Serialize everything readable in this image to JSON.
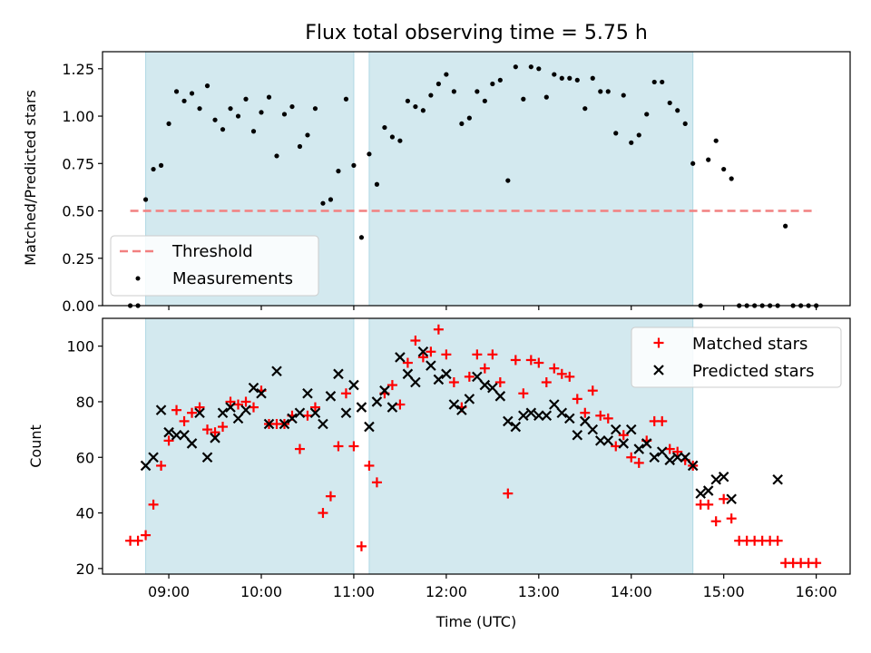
{
  "colors": {
    "shade": "#d3e9ef",
    "shade_edge": "#b0d8e4",
    "threshold": "#f28080",
    "measurements": "#000000",
    "matched": "#ff0000",
    "predicted": "#000000"
  },
  "chart_data": [
    {
      "type": "scatter",
      "title": "Flux total observing time = 5.75 h",
      "xlabel": "",
      "ylabel": "Matched/Predicted stars",
      "xlim": [
        "08:17",
        "16:22"
      ],
      "ylim": [
        0,
        1.34
      ],
      "yticks": [
        "0.00",
        "0.25",
        "0.50",
        "0.75",
        "1.00",
        "1.25"
      ],
      "xticks": [
        "09:00",
        "10:00",
        "11:00",
        "12:00",
        "13:00",
        "14:00",
        "15:00",
        "16:00"
      ],
      "shaded_intervals": [
        [
          "08:45",
          "11:00"
        ],
        [
          "11:10",
          "14:40"
        ]
      ],
      "legend": [
        "Threshold",
        "Measurements"
      ],
      "legend_position": "lower-left",
      "threshold": {
        "name": "Threshold",
        "x": [
          "08:35",
          "16:00"
        ],
        "y": 0.5
      },
      "series": [
        {
          "name": "Measurements",
          "x": [
            "08:35",
            "08:40",
            "08:45",
            "08:50",
            "08:55",
            "09:00",
            "09:05",
            "09:10",
            "09:15",
            "09:20",
            "09:25",
            "09:30",
            "09:35",
            "09:40",
            "09:45",
            "09:50",
            "09:55",
            "10:00",
            "10:05",
            "10:10",
            "10:15",
            "10:20",
            "10:25",
            "10:30",
            "10:35",
            "10:40",
            "10:45",
            "10:50",
            "10:55",
            "11:00",
            "11:05",
            "11:10",
            "11:15",
            "11:20",
            "11:25",
            "11:30",
            "11:35",
            "11:40",
            "11:45",
            "11:50",
            "11:55",
            "12:00",
            "12:05",
            "12:10",
            "12:15",
            "12:20",
            "12:25",
            "12:30",
            "12:35",
            "12:40",
            "12:45",
            "12:50",
            "12:55",
            "13:00",
            "13:05",
            "13:10",
            "13:15",
            "13:20",
            "13:25",
            "13:30",
            "13:35",
            "13:40",
            "13:45",
            "13:50",
            "13:55",
            "14:00",
            "14:05",
            "14:10",
            "14:15",
            "14:20",
            "14:25",
            "14:30",
            "14:35",
            "14:40",
            "14:45",
            "14:50",
            "14:55",
            "15:00",
            "15:05",
            "15:10",
            "15:15",
            "15:20",
            "15:25",
            "15:30",
            "15:35",
            "15:40",
            "15:45",
            "15:50",
            "15:55",
            "16:00"
          ],
          "y": [
            0.0,
            0.0,
            0.56,
            0.72,
            0.74,
            0.96,
            1.13,
            1.08,
            1.12,
            1.04,
            1.16,
            0.98,
            0.93,
            1.04,
            1.0,
            1.09,
            0.92,
            1.02,
            1.1,
            0.79,
            1.01,
            1.05,
            0.84,
            0.9,
            1.04,
            0.54,
            0.56,
            0.71,
            1.09,
            0.74,
            0.36,
            0.8,
            0.64,
            0.94,
            0.89,
            0.87,
            1.08,
            1.05,
            1.03,
            1.11,
            1.17,
            1.22,
            1.13,
            0.96,
            0.99,
            1.13,
            1.08,
            1.17,
            1.19,
            0.66,
            1.26,
            1.09,
            1.26,
            1.25,
            1.1,
            1.22,
            1.2,
            1.2,
            1.19,
            1.04,
            1.2,
            1.13,
            1.13,
            0.91,
            1.11,
            0.86,
            0.9,
            1.01,
            1.18,
            1.18,
            1.07,
            1.03,
            0.96,
            0.75,
            0.0,
            0.77,
            0.87,
            0.72,
            0.67,
            0.0,
            0.0,
            0.0,
            0.0,
            0.0,
            0.0,
            0.42,
            0.0,
            0.0,
            0.0,
            0.0
          ]
        }
      ]
    },
    {
      "type": "scatter",
      "title": "",
      "xlabel": "Time (UTC)",
      "ylabel": "Count",
      "xlim": [
        "08:17",
        "16:22"
      ],
      "ylim": [
        18,
        110
      ],
      "yticks": [
        "20",
        "40",
        "60",
        "80",
        "100"
      ],
      "xticks": [
        "09:00",
        "10:00",
        "11:00",
        "12:00",
        "13:00",
        "14:00",
        "15:00",
        "16:00"
      ],
      "shaded_intervals": [
        [
          "08:45",
          "11:00"
        ],
        [
          "11:10",
          "14:40"
        ]
      ],
      "legend": [
        "Matched stars",
        "Predicted stars"
      ],
      "legend_position": "upper-right",
      "series": [
        {
          "name": "Matched stars",
          "marker": "plus",
          "x": [
            "08:35",
            "08:40",
            "08:45",
            "08:50",
            "08:55",
            "09:00",
            "09:05",
            "09:10",
            "09:15",
            "09:20",
            "09:25",
            "09:30",
            "09:35",
            "09:40",
            "09:45",
            "09:50",
            "09:55",
            "10:00",
            "10:05",
            "10:10",
            "10:15",
            "10:20",
            "10:25",
            "10:30",
            "10:35",
            "10:40",
            "10:45",
            "10:50",
            "10:55",
            "11:00",
            "11:05",
            "11:10",
            "11:15",
            "11:20",
            "11:25",
            "11:30",
            "11:35",
            "11:40",
            "11:45",
            "11:50",
            "11:55",
            "12:00",
            "12:05",
            "12:10",
            "12:15",
            "12:20",
            "12:25",
            "12:30",
            "12:35",
            "12:40",
            "12:45",
            "12:50",
            "12:55",
            "13:00",
            "13:05",
            "13:10",
            "13:15",
            "13:20",
            "13:25",
            "13:30",
            "13:35",
            "13:40",
            "13:45",
            "13:50",
            "13:55",
            "14:00",
            "14:05",
            "14:10",
            "14:15",
            "14:20",
            "14:25",
            "14:30",
            "14:35",
            "14:40",
            "14:45",
            "14:50",
            "14:55",
            "15:00",
            "15:05",
            "15:10",
            "15:15",
            "15:20",
            "15:25",
            "15:30",
            "15:35",
            "15:40",
            "15:45",
            "15:50",
            "15:55",
            "16:00"
          ],
          "y": [
            30,
            30,
            32,
            43,
            57,
            66,
            77,
            73,
            76,
            78,
            70,
            69,
            71,
            80,
            79,
            80,
            78,
            84,
            72,
            72,
            72,
            75,
            63,
            75,
            78,
            40,
            46,
            64,
            83,
            64,
            28,
            57,
            51,
            83,
            86,
            79,
            94,
            102,
            96,
            98,
            106,
            97,
            87,
            78,
            89,
            97,
            92,
            97,
            87,
            47,
            95,
            83,
            95,
            94,
            87,
            92,
            90,
            89,
            81,
            76,
            84,
            75,
            74,
            64,
            68,
            60,
            58,
            66,
            73,
            73,
            63,
            62,
            59,
            57,
            43,
            43,
            37,
            45,
            38,
            30,
            30,
            30,
            30,
            30,
            30,
            22,
            22,
            22,
            22,
            22
          ]
        },
        {
          "name": "Predicted stars",
          "marker": "x",
          "x": [
            "08:45",
            "08:50",
            "08:55",
            "09:00",
            "09:05",
            "09:10",
            "09:15",
            "09:20",
            "09:25",
            "09:30",
            "09:35",
            "09:40",
            "09:45",
            "09:50",
            "09:55",
            "10:00",
            "10:05",
            "10:10",
            "10:15",
            "10:20",
            "10:25",
            "10:30",
            "10:35",
            "10:40",
            "10:45",
            "10:50",
            "10:55",
            "11:00",
            "11:05",
            "11:10",
            "11:15",
            "11:20",
            "11:25",
            "11:30",
            "11:35",
            "11:40",
            "11:45",
            "11:50",
            "11:55",
            "12:00",
            "12:05",
            "12:10",
            "12:15",
            "12:20",
            "12:25",
            "12:30",
            "12:35",
            "12:40",
            "12:45",
            "12:50",
            "12:55",
            "13:00",
            "13:05",
            "13:10",
            "13:15",
            "13:20",
            "13:25",
            "13:30",
            "13:35",
            "13:40",
            "13:45",
            "13:50",
            "13:55",
            "14:00",
            "14:05",
            "14:10",
            "14:15",
            "14:20",
            "14:25",
            "14:30",
            "14:35",
            "14:40",
            "14:45",
            "14:50",
            "14:55",
            "15:00",
            "15:05",
            "15:35"
          ],
          "y": [
            57,
            60,
            77,
            69,
            68,
            68,
            65,
            76,
            60,
            67,
            76,
            78,
            74,
            77,
            85,
            83,
            72,
            91,
            72,
            74,
            76,
            83,
            76,
            72,
            82,
            90,
            76,
            86,
            78,
            71,
            80,
            84,
            78,
            96,
            90,
            87,
            98,
            93,
            88,
            90,
            79,
            77,
            81,
            89,
            86,
            85,
            82,
            73,
            71,
            75,
            76,
            75,
            75,
            79,
            76,
            74,
            68,
            73,
            70,
            66,
            66,
            70,
            65,
            70,
            63,
            65,
            60,
            62,
            59,
            60,
            60,
            57,
            47,
            48,
            52,
            53,
            45,
            52
          ]
        }
      ]
    }
  ]
}
